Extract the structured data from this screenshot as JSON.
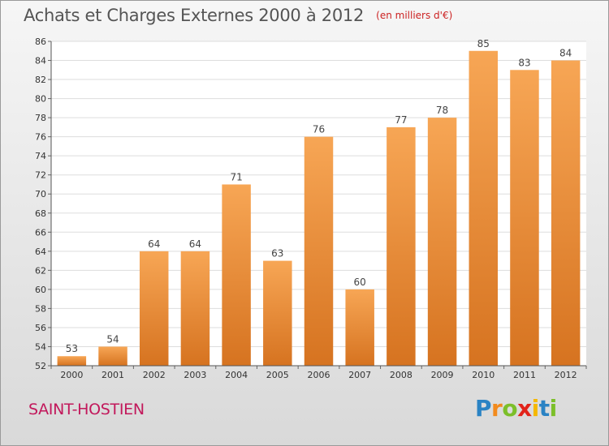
{
  "chart_data": {
    "type": "bar",
    "title": "Achats et Charges Externes 2000 à 2012",
    "unit": "(en milliers d'€)",
    "categories": [
      "2000",
      "2001",
      "2002",
      "2003",
      "2004",
      "2005",
      "2006",
      "2007",
      "2008",
      "2009",
      "2010",
      "2011",
      "2012"
    ],
    "values": [
      53,
      54,
      64,
      64,
      71,
      63,
      76,
      60,
      77,
      78,
      85,
      83,
      84
    ],
    "ylim": [
      52,
      86
    ],
    "yticks": [
      52,
      54,
      56,
      58,
      60,
      62,
      64,
      66,
      68,
      70,
      72,
      74,
      76,
      78,
      80,
      82,
      84,
      86
    ],
    "grid": true,
    "bar_color_top": "#f7a655",
    "bar_color_bottom": "#d67320"
  },
  "commune": "SAINT-HOSTIEN",
  "logo": {
    "letters": [
      "P",
      "r",
      "o",
      "x",
      "i",
      "t",
      "i"
    ],
    "colors": [
      "#2a83c4",
      "#f28a1d",
      "#7cbf2a",
      "#e2231a",
      "#f5b800",
      "#2a83c4",
      "#7cbf2a"
    ]
  }
}
